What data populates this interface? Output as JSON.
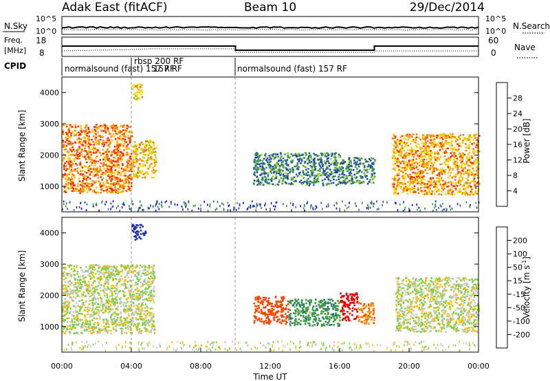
{
  "header": {
    "station": "Adak East (fitACF)",
    "beam": "Beam 10",
    "date": "29/Dec/2014"
  },
  "strips": {
    "nsky_label": "N.Sky",
    "nsky_ticks": [
      "10^5",
      "10^0"
    ],
    "nsearch_label": "N.Search",
    "nsearch_ticks": [
      "10^5",
      "10^0"
    ],
    "freq_label_line1": "Freq.",
    "freq_label_line2": "[MHz]",
    "freq_ticks": [
      "18",
      "8"
    ],
    "nave_label": "Nave",
    "nave_ticks": [
      "60",
      "0"
    ],
    "cpid_label": "CPID",
    "cpid_segments": [
      {
        "label": "normalsound (fast) 157 RF",
        "start": "00:00",
        "end": "04:00"
      },
      {
        "label": "rbsp 200 RF",
        "start": "04:00",
        "end": "10:00"
      },
      {
        "label": "157 RF",
        "start": "04:00",
        "end": "10:00"
      },
      {
        "label": "normalsound (fast) 157 RF",
        "start": "10:00",
        "end": "24:00"
      }
    ]
  },
  "colorbars": {
    "power": {
      "label": "Power [dB]",
      "ticks": [
        "28",
        "24",
        "20",
        "16",
        "12",
        "8",
        "4"
      ],
      "colors": [
        "#d40000",
        "#ff2a00",
        "#ff7a00",
        "#ffc000",
        "#e8e000",
        "#9acd32",
        "#3c9a3c",
        "#2a6e8f",
        "#1f3fa8",
        "#0000ff"
      ]
    },
    "velocity": {
      "label": "Velocity [m s",
      "label_sup": "-1",
      "label_end": "]",
      "ticks": [
        "200",
        "100",
        "50",
        "15",
        "-15",
        "-50",
        "-100",
        "-200"
      ],
      "colors": [
        "#1a2fa8",
        "#2a6e8f",
        "#3c9a3c",
        "#7ccd4a",
        "#c8c8c8",
        "#ffc000",
        "#ff8c00",
        "#ff4500",
        "#e00000"
      ]
    }
  },
  "axes": {
    "ylabel": "Slant Range [km]",
    "yticks": [
      "4000",
      "3000",
      "2000",
      "1000"
    ],
    "xticks": [
      "00:00",
      "04:00",
      "08:00",
      "12:00",
      "16:00",
      "20:00",
      "00:00"
    ],
    "xlabel": "Time UT"
  },
  "chart_data": [
    {
      "type": "heatmap",
      "title": "Beam 10",
      "xlabel": "",
      "ylabel": "Slant Range [km]",
      "xlim_hours": [
        0,
        24
      ],
      "ylim_km": [
        180,
        4500
      ],
      "colorbar_label": "Power [dB]",
      "colorbar_range": [
        0,
        30
      ],
      "regions": [
        {
          "t_start": 0.0,
          "t_end": 4.0,
          "r_low": 800,
          "r_high": 3000,
          "level": 24
        },
        {
          "t_start": 4.0,
          "t_end": 5.4,
          "r_low": 1300,
          "r_high": 2500,
          "level": 20
        },
        {
          "t_start": 4.0,
          "t_end": 4.6,
          "r_low": 3800,
          "r_high": 4300,
          "level": 20
        },
        {
          "t_start": 11.0,
          "t_end": 16.0,
          "r_low": 1050,
          "r_high": 2100,
          "level": 10
        },
        {
          "t_start": 16.0,
          "t_end": 18.0,
          "r_low": 1100,
          "r_high": 1950,
          "level": 10
        },
        {
          "t_start": 19.0,
          "t_end": 24.0,
          "r_low": 750,
          "r_high": 2700,
          "level": 22
        }
      ]
    },
    {
      "type": "heatmap",
      "title": "",
      "xlabel": "Time UT",
      "ylabel": "Slant Range [km]",
      "xlim_hours": [
        0,
        24
      ],
      "ylim_km": [
        180,
        4500
      ],
      "colorbar_label": "Velocity [m s-1]",
      "colorbar_range": [
        -250,
        250
      ],
      "regions": [
        {
          "t_start": 0.0,
          "t_end": 5.3,
          "r_low": 800,
          "r_high": 3000,
          "level": 0
        },
        {
          "t_start": 4.0,
          "t_end": 4.8,
          "r_low": 3800,
          "r_high": 4300,
          "level": 220
        },
        {
          "t_start": 11.0,
          "t_end": 13.0,
          "r_low": 1100,
          "r_high": 2000,
          "level": -120
        },
        {
          "t_start": 13.0,
          "t_end": 16.0,
          "r_low": 1050,
          "r_high": 1900,
          "level": 60
        },
        {
          "t_start": 16.0,
          "t_end": 17.0,
          "r_low": 1200,
          "r_high": 2100,
          "level": -200
        },
        {
          "t_start": 17.0,
          "t_end": 18.0,
          "r_low": 1100,
          "r_high": 1800,
          "level": -60
        },
        {
          "t_start": 19.2,
          "t_end": 24.0,
          "r_low": 850,
          "r_high": 2600,
          "level": 0
        }
      ]
    }
  ]
}
